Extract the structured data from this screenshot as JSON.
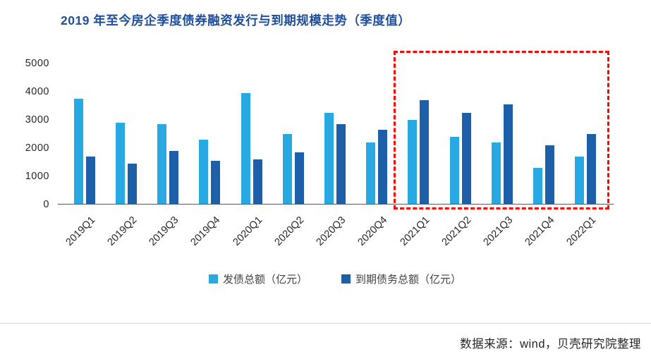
{
  "title": "2019 年至今房企季度债券融资发行与到期规模走势（季度值）",
  "source": "数据来源：wind，贝壳研究院整理",
  "chart_data": {
    "type": "bar",
    "title": "2019 年至今房企季度债券融资发行与到期规模走势（季度值）",
    "categories": [
      "2019Q1",
      "2019Q2",
      "2019Q3",
      "2019Q4",
      "2020Q1",
      "2020Q2",
      "2020Q3",
      "2020Q4",
      "2021Q1",
      "2021Q2",
      "2021Q3",
      "2021Q4",
      "2022Q1"
    ],
    "series": [
      {
        "name": "发债总额（亿元）",
        "color": "#29a9e1",
        "values": [
          3750,
          2900,
          2850,
          2300,
          3950,
          2500,
          3250,
          2200,
          3000,
          2400,
          2200,
          1300,
          1700
        ]
      },
      {
        "name": "到期债务总额（亿元）",
        "color": "#1e5fa9",
        "values": [
          1700,
          1450,
          1900,
          1550,
          1600,
          1850,
          2850,
          2650,
          3700,
          3250,
          3550,
          2100,
          2500
        ]
      }
    ],
    "ylim": [
      0,
      5000
    ],
    "yticks": [
      0,
      1000,
      2000,
      3000,
      4000,
      5000
    ],
    "grid": false,
    "legend_position": "bottom",
    "highlight": {
      "from_index": 8,
      "to_index": 12,
      "color": "#ff0000",
      "style": "dashed"
    }
  }
}
